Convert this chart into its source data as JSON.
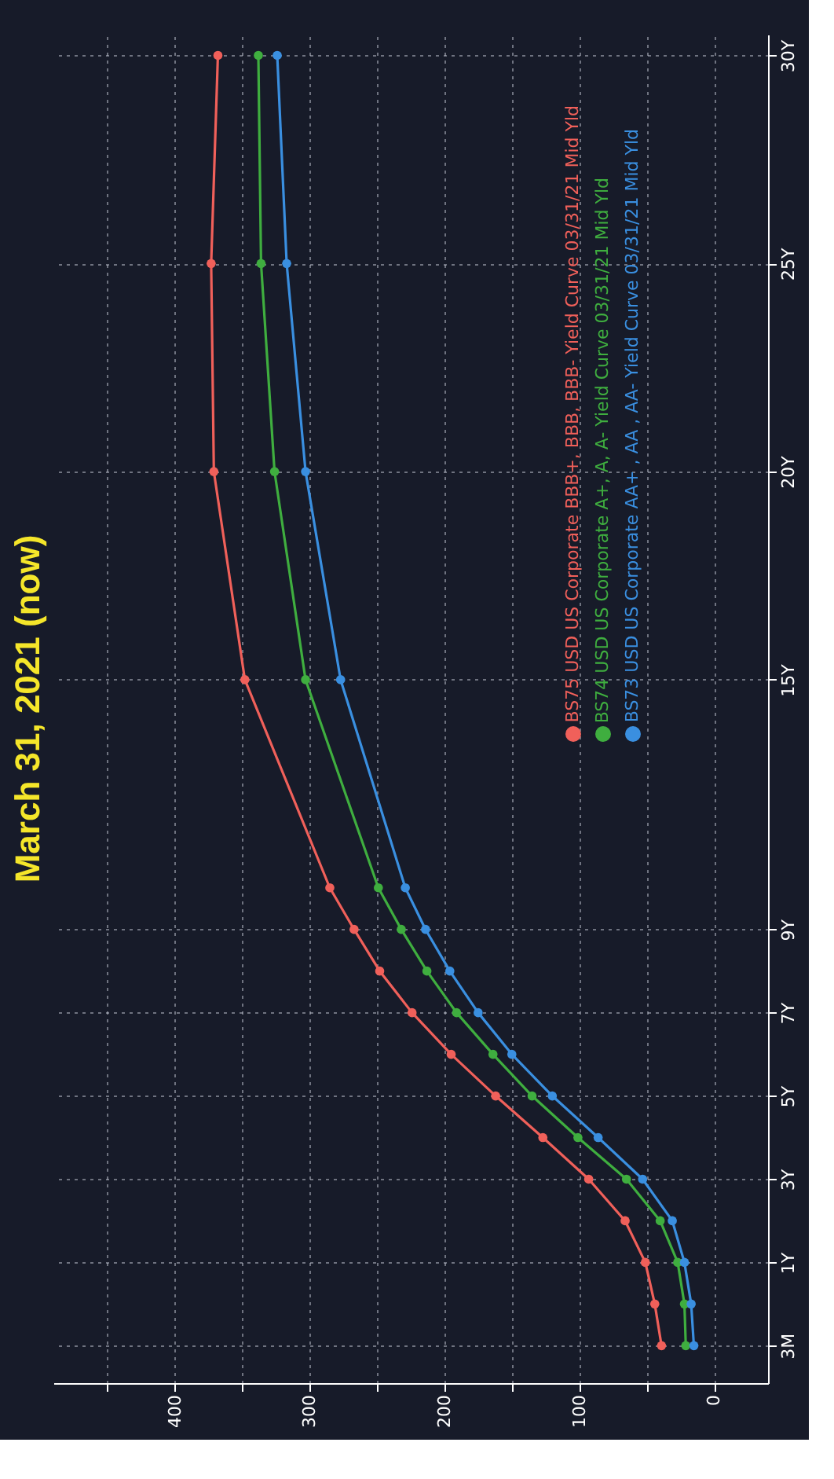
{
  "chart_data": {
    "type": "line",
    "title": "March 31, 2021 (now)",
    "orientation": "horizontal",
    "categories": [
      "30Y",
      null,
      null,
      null,
      null,
      "25Y",
      null,
      null,
      null,
      null,
      "20Y",
      null,
      null,
      null,
      null,
      "15Y",
      null,
      null,
      null,
      null,
      null,
      "9Y",
      null,
      "7Y",
      null,
      "5Y",
      null,
      "3Y",
      null,
      "1Y",
      null,
      "3M"
    ],
    "series": [
      {
        "name": "BS75 USD US Corporate BBB+, BBB, BBB- Yield Curve 03/31/21 Mid Yld",
        "color": "#f0605a",
        "values": [
          368,
          null,
          null,
          null,
          null,
          373,
          null,
          null,
          null,
          null,
          371,
          null,
          null,
          null,
          null,
          348,
          null,
          null,
          null,
          null,
          285,
          267,
          248,
          224,
          195,
          162,
          127,
          93,
          66,
          51,
          44,
          39
        ]
      },
      {
        "name": "BS74 USD US Corporate A+, A, A- Yield Curve 03/31/21 Mid Yld",
        "color": "#3fae3f",
        "values": [
          338,
          null,
          null,
          null,
          null,
          336,
          null,
          null,
          null,
          null,
          326,
          null,
          null,
          null,
          null,
          303,
          null,
          null,
          null,
          null,
          249,
          232,
          213,
          191,
          164,
          135,
          101,
          65,
          40,
          27,
          22,
          21
        ]
      },
      {
        "name": "BS73 USD US Corporate AA+ , AA , AA- Yield Curve 03/31/21 Mid Yld",
        "color": "#3a8fe0",
        "values": [
          324,
          null,
          null,
          null,
          null,
          317,
          null,
          null,
          null,
          null,
          303,
          null,
          null,
          null,
          null,
          277,
          null,
          null,
          null,
          null,
          229,
          214,
          196,
          175,
          150,
          120,
          86,
          53,
          31,
          22,
          17,
          15
        ]
      }
    ],
    "xlim": [
      490,
      -40
    ],
    "xticks": [
      {
        "value": 450,
        "label": null
      },
      400,
      {
        "value": 350,
        "label": null
      },
      300,
      {
        "value": 250,
        "label": null
      },
      200,
      {
        "value": 150,
        "label": null
      },
      100,
      {
        "value": 50,
        "label": null
      },
      0
    ],
    "grid": true,
    "legend": "top right",
    "marker": "circle",
    "line_style": "solid"
  }
}
